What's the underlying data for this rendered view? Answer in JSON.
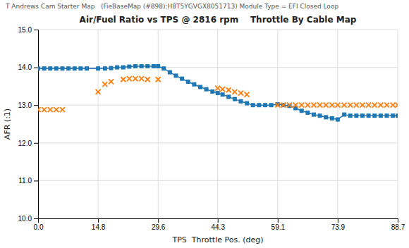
{
  "chart_data": {
    "type": "line",
    "title": "Air/Fuel Ratio vs TPS @ 2816 rpm    Throttle By Cable Map",
    "subtitle": "T Andrews Cam Starter Map   (FieBaseMap (#898):H8T5YGVGX8051713) Module Type = EFI Closed Loop",
    "x_label": "TPS  Throttle Pos. (deg)",
    "y_label": "AFR (:1)",
    "xlim": [
      0.0,
      88.7
    ],
    "ylim": [
      10.0,
      15.0
    ],
    "xticks": [
      {
        "value": 0.0,
        "label": "0.0"
      },
      14.8,
      29.6,
      44.3,
      59.1,
      73.9,
      88.7
    ],
    "yticks": [
      {
        "value": 10.0,
        "label": "10.0"
      },
      {
        "value": 11.0,
        "label": "11.0"
      },
      {
        "value": 12.0,
        "label": "12.0"
      },
      {
        "value": 13.0,
        "label": "13.0"
      },
      {
        "value": 14.0,
        "label": "14.0"
      },
      {
        "value": 15.0,
        "label": "15.0"
      }
    ],
    "grid": true,
    "series": [
      {
        "type": "line",
        "marker": "square",
        "x": [
          0.0,
          1.5,
          3.0,
          4.5,
          6.0,
          7.5,
          9.0,
          10.5,
          12.0,
          14.8,
          16.5,
          18.0,
          19.5,
          21.0,
          22.5,
          24.0,
          25.5,
          27.0,
          28.5,
          29.6,
          31.0,
          32.5,
          34.0,
          35.5,
          37.0,
          38.5,
          40.0,
          41.5,
          43.0,
          44.3,
          45.5,
          47.0,
          48.5,
          50.0,
          51.5,
          53.0,
          54.5,
          56.0,
          57.5,
          59.1,
          60.5,
          62.0,
          63.5,
          65.0,
          66.5,
          68.0,
          69.5,
          71.0,
          72.5,
          73.9,
          75.5,
          77.0,
          78.5,
          80.0,
          81.5,
          83.0,
          84.5,
          86.0,
          87.5,
          88.7
        ],
        "values": [
          13.97,
          13.97,
          13.97,
          13.97,
          13.97,
          13.97,
          13.97,
          13.97,
          13.97,
          13.97,
          13.97,
          13.98,
          14.0,
          14.0,
          14.02,
          14.03,
          14.03,
          14.03,
          14.03,
          14.03,
          13.97,
          13.87,
          13.78,
          13.7,
          13.62,
          13.55,
          13.48,
          13.42,
          13.36,
          13.32,
          13.28,
          13.22,
          13.16,
          13.1,
          13.05,
          13.0,
          13.0,
          13.0,
          13.0,
          13.02,
          13.0,
          12.98,
          12.92,
          12.85,
          12.8,
          12.75,
          12.72,
          12.68,
          12.65,
          12.62,
          12.75,
          12.72,
          12.72,
          12.72,
          12.72,
          12.72,
          12.72,
          12.72,
          12.72,
          12.72
        ]
      },
      {
        "type": "scatter",
        "marker": "x",
        "x": [
          0.0,
          1.5,
          3.0,
          4.5,
          6.0,
          14.8,
          16.5,
          18.0,
          21.0,
          22.5,
          24.0,
          25.5,
          27.0,
          29.6,
          44.3,
          45.5,
          47.0,
          48.5,
          50.0,
          51.5,
          59.1,
          60.5,
          62.0,
          63.5,
          65.0,
          66.5,
          68.0,
          69.5,
          71.0,
          72.5,
          73.9,
          75.5,
          77.0,
          78.5,
          80.0,
          81.5,
          83.0,
          84.5,
          86.0,
          87.5,
          88.7
        ],
        "values": [
          12.88,
          12.88,
          12.88,
          12.88,
          12.88,
          13.35,
          13.55,
          13.62,
          13.68,
          13.7,
          13.7,
          13.7,
          13.68,
          13.68,
          13.45,
          13.42,
          13.4,
          13.35,
          13.32,
          13.28,
          13.0,
          13.0,
          13.0,
          13.0,
          13.0,
          13.0,
          13.0,
          13.0,
          13.0,
          13.0,
          13.0,
          13.0,
          13.0,
          13.0,
          13.0,
          13.0,
          13.0,
          13.0,
          13.0,
          13.0,
          13.0
        ]
      }
    ]
  }
}
